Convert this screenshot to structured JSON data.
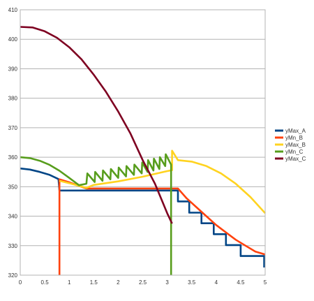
{
  "chart_data": {
    "type": "line",
    "title": "",
    "xlabel": "",
    "ylabel": "",
    "xlim": [
      0,
      5
    ],
    "ylim": [
      320,
      410
    ],
    "x_ticks": [
      0,
      0.5,
      1,
      1.5,
      2,
      2.5,
      3,
      3.5,
      4,
      4.5,
      5
    ],
    "x_tick_labels": [
      "0",
      "0.5",
      "1",
      "1.5",
      "2",
      "2.5",
      "3",
      "3.5",
      "4",
      "4.5",
      "5"
    ],
    "y_ticks": [
      320,
      330,
      340,
      350,
      360,
      370,
      380,
      390,
      400,
      410
    ],
    "y_tick_labels": [
      "320",
      "330",
      "340",
      "350",
      "360",
      "370",
      "380",
      "390",
      "400",
      "410"
    ],
    "grid": "horizontal",
    "legend_position": "right",
    "series": [
      {
        "name": "yMax_A",
        "color": "#004586",
        "points": [
          [
            0,
            356.2
          ],
          [
            0.2,
            355.8
          ],
          [
            0.4,
            355
          ],
          [
            0.6,
            354
          ],
          [
            0.78,
            352.6
          ],
          [
            0.8,
            348.7
          ],
          [
            0.8,
            348.7
          ],
          [
            3.22,
            348.7
          ],
          [
            3.22,
            345
          ],
          [
            3.45,
            345
          ],
          [
            3.45,
            341.2
          ],
          [
            3.7,
            341.2
          ],
          [
            3.7,
            337.6
          ],
          [
            3.95,
            337.6
          ],
          [
            3.95,
            333.9
          ],
          [
            4.2,
            333.9
          ],
          [
            4.2,
            330.2
          ],
          [
            4.5,
            330.2
          ],
          [
            4.5,
            326.5
          ],
          [
            4.98,
            326.5
          ],
          [
            4.98,
            322.6
          ]
        ]
      },
      {
        "name": "yMn_B",
        "color": "#FF420E",
        "points": [
          [
            0.8,
            320
          ],
          [
            0.8,
            352.5
          ],
          [
            1.0,
            351.5
          ],
          [
            1.2,
            350.3
          ],
          [
            1.35,
            349.4
          ],
          [
            3.22,
            349.4
          ],
          [
            3.4,
            346
          ],
          [
            3.6,
            343
          ],
          [
            3.8,
            340
          ],
          [
            4.0,
            337
          ],
          [
            4.2,
            334.5
          ],
          [
            4.4,
            332
          ],
          [
            4.6,
            330
          ],
          [
            4.8,
            328
          ],
          [
            5,
            327
          ]
        ]
      },
      {
        "name": "yMax_B",
        "color": "#FFD320",
        "points": [
          [
            0.8,
            352
          ],
          [
            1.0,
            351.2
          ],
          [
            1.2,
            350.3
          ],
          [
            1.35,
            349.6
          ],
          [
            1.5,
            350.6
          ],
          [
            2,
            351.8
          ],
          [
            2.5,
            353.4
          ],
          [
            3.0,
            355.3
          ],
          [
            3.1,
            355.6
          ],
          [
            3.1,
            362.2
          ],
          [
            3.22,
            359
          ],
          [
            3.5,
            358.5
          ],
          [
            3.8,
            357
          ],
          [
            4.1,
            354.5
          ],
          [
            4.4,
            351
          ],
          [
            4.7,
            346.5
          ],
          [
            5,
            341
          ]
        ]
      },
      {
        "name": "yMn_C",
        "color": "#579D1C",
        "points": [
          [
            0,
            360
          ],
          [
            0.2,
            359.7
          ],
          [
            0.4,
            358.8
          ],
          [
            0.6,
            357.4
          ],
          [
            0.8,
            355.4
          ],
          [
            1.0,
            353
          ],
          [
            1.2,
            350.5
          ],
          [
            1.35,
            351
          ],
          [
            1.37,
            354.5
          ],
          [
            1.52,
            351.6
          ],
          [
            1.53,
            355
          ],
          [
            1.68,
            352
          ],
          [
            1.69,
            355.5
          ],
          [
            1.84,
            352.5
          ],
          [
            1.85,
            356
          ],
          [
            2.0,
            353
          ],
          [
            2.01,
            356.5
          ],
          [
            2.16,
            353.5
          ],
          [
            2.17,
            357
          ],
          [
            2.32,
            354
          ],
          [
            2.33,
            357.5
          ],
          [
            2.48,
            354.5
          ],
          [
            2.49,
            358.2
          ],
          [
            2.6,
            355
          ],
          [
            2.61,
            359
          ],
          [
            2.72,
            355.5
          ],
          [
            2.73,
            359.5
          ],
          [
            2.84,
            356
          ],
          [
            2.85,
            360
          ],
          [
            2.96,
            357
          ],
          [
            2.97,
            361
          ],
          [
            3.08,
            357.5
          ],
          [
            3.08,
            320
          ]
        ]
      },
      {
        "name": "yMax_C",
        "color": "#7E0021",
        "points": [
          [
            0,
            404.2
          ],
          [
            0.25,
            404
          ],
          [
            0.5,
            402.7
          ],
          [
            0.75,
            400.5
          ],
          [
            1.0,
            397.3
          ],
          [
            1.25,
            393.2
          ],
          [
            1.5,
            388
          ],
          [
            1.75,
            382.2
          ],
          [
            2.0,
            375.5
          ],
          [
            2.25,
            368
          ],
          [
            2.5,
            359
          ],
          [
            2.75,
            351
          ],
          [
            2.9,
            345
          ],
          [
            3.0,
            341
          ],
          [
            3.1,
            337.5
          ]
        ]
      }
    ]
  }
}
